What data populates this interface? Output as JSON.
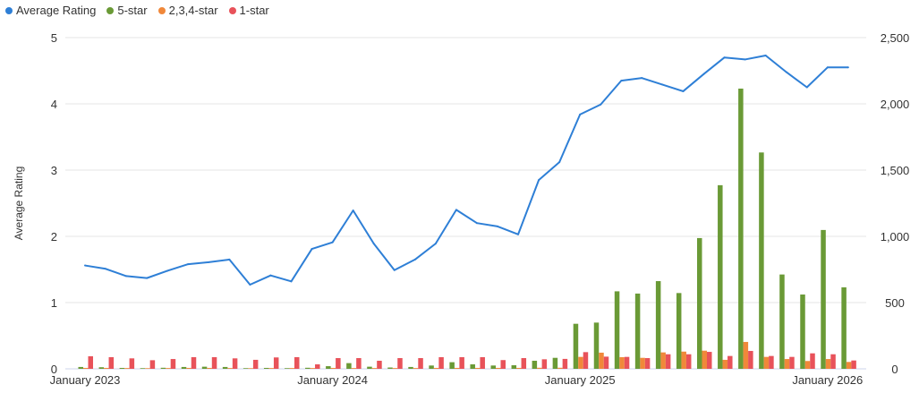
{
  "chart_data": {
    "type": "bar+line",
    "legend_position": "top-left",
    "grid": true,
    "x": [
      "2023-01",
      "2023-02",
      "2023-03",
      "2023-04",
      "2023-05",
      "2023-06",
      "2023-07",
      "2023-08",
      "2023-09",
      "2023-10",
      "2023-11",
      "2023-12",
      "2024-01",
      "2024-02",
      "2024-03",
      "2024-04",
      "2024-05",
      "2024-06",
      "2024-07",
      "2024-08",
      "2024-09",
      "2024-10",
      "2024-11",
      "2024-12",
      "2025-01",
      "2025-02",
      "2025-03",
      "2025-04",
      "2025-05",
      "2025-06",
      "2025-07",
      "2025-08",
      "2025-09",
      "2025-10",
      "2025-11",
      "2025-12",
      "2026-01",
      "2026-02"
    ],
    "x_tick_labels": [
      {
        "x": "2023-01",
        "label": "January 2023"
      },
      {
        "x": "2024-01",
        "label": "January 2024"
      },
      {
        "x": "2025-01",
        "label": "January 2025"
      },
      {
        "x": "2026-01",
        "label": "January 2026"
      }
    ],
    "y_left": {
      "label": "Average Rating",
      "range": [
        0,
        5
      ],
      "ticks": [
        "0",
        "1",
        "2",
        "3",
        "4",
        "5"
      ]
    },
    "y_right": {
      "label": "",
      "range": [
        0,
        2500
      ],
      "ticks": [
        "0",
        "500",
        "1,000",
        "1,500",
        "2,000",
        "2,500"
      ]
    },
    "series": [
      {
        "name": "Average Rating",
        "type": "line",
        "axis": "left",
        "color": "#2e7fd6",
        "values": [
          1.56,
          1.51,
          1.4,
          1.37,
          1.48,
          1.58,
          1.61,
          1.65,
          1.27,
          1.41,
          1.32,
          1.81,
          1.91,
          2.39,
          1.89,
          1.49,
          1.65,
          1.89,
          2.4,
          2.2,
          2.15,
          2.03,
          2.85,
          3.12,
          3.84,
          3.99,
          4.35,
          4.39,
          4.29,
          4.19,
          4.45,
          4.7,
          4.67,
          4.73,
          4.48,
          4.25,
          4.55,
          4.55
        ]
      },
      {
        "name": "5-star",
        "type": "bar",
        "axis": "right",
        "color": "#6a9a36",
        "values": [
          14,
          12,
          7,
          5,
          8,
          14,
          16,
          14,
          5,
          7,
          5,
          8,
          20,
          43,
          16,
          10,
          14,
          25,
          50,
          34,
          25,
          27,
          61,
          83,
          340,
          349,
          585,
          568,
          662,
          572,
          987,
          1386,
          2115,
          1633,
          712,
          561,
          1048,
          615
        ]
      },
      {
        "name": "2,3,4-star",
        "type": "bar",
        "axis": "right",
        "color": "#f0883a",
        "values": [
          7,
          7,
          6,
          5,
          6,
          7,
          7,
          6,
          5,
          6,
          6,
          6,
          7,
          6,
          6,
          6,
          6,
          7,
          7,
          7,
          7,
          7,
          8,
          8,
          90,
          122,
          88,
          83,
          124,
          130,
          137,
          68,
          203,
          90,
          74,
          59,
          74,
          52
        ]
      },
      {
        "name": "1-star",
        "type": "bar",
        "axis": "right",
        "color": "#e8525a",
        "values": [
          95,
          88,
          79,
          65,
          74,
          88,
          88,
          79,
          68,
          86,
          88,
          34,
          81,
          81,
          61,
          81,
          81,
          88,
          88,
          88,
          66,
          81,
          72,
          75,
          126,
          92,
          90,
          81,
          110,
          110,
          128,
          97,
          135,
          97,
          90,
          117,
          110,
          63
        ]
      }
    ]
  }
}
